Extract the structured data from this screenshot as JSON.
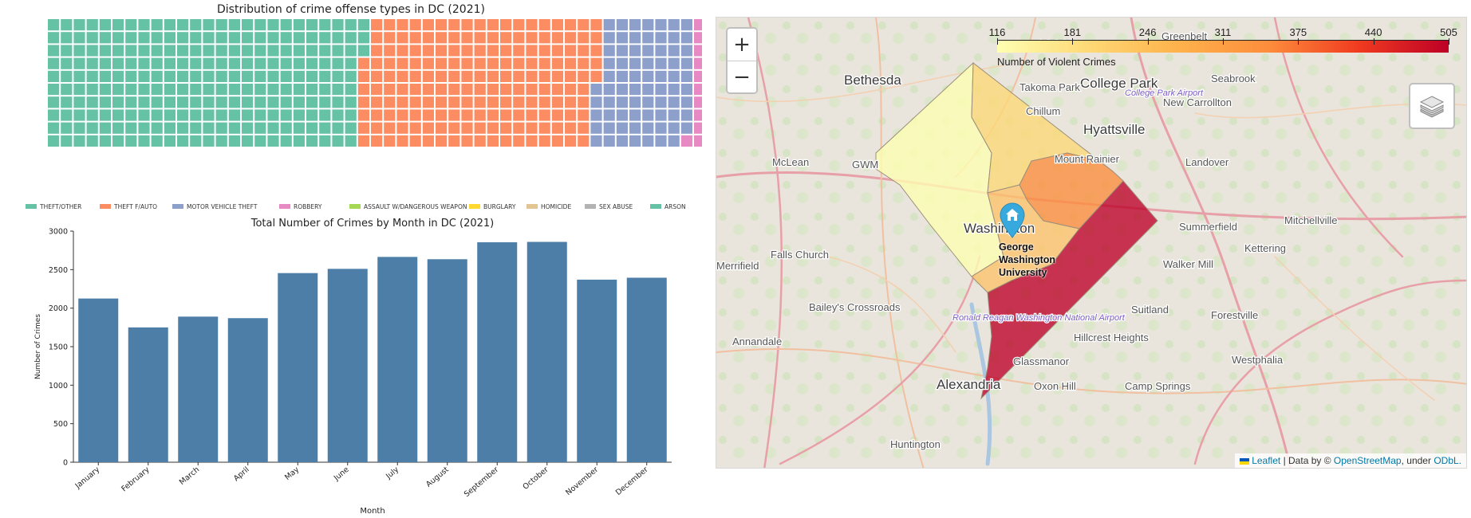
{
  "chart_data": [
    {
      "type": "waffle",
      "title": "Distribution of crime offense types in DC (2021)",
      "rows": 10,
      "columns": 62,
      "categories": [
        {
          "name": "THEFT/OTHER",
          "cells": 243,
          "color": "#66c2a5"
        },
        {
          "name": "THEFT F/AUTO",
          "cells": 182,
          "color": "#fc8d62"
        },
        {
          "name": "MOTOR VEHICLE THEFT",
          "cells": 74,
          "color": "#8da0cb"
        },
        {
          "name": "ROBBERY",
          "cells": 40,
          "color": "#e78ac3"
        },
        {
          "name": "ASSAULT W/DANGEROUS WEAPON",
          "cells": 30,
          "color": "#a6d854"
        },
        {
          "name": "BURGLARY",
          "cells": 20,
          "color": "#ffd92f"
        },
        {
          "name": "HOMICIDE",
          "cells": 4,
          "color": "#e5c494"
        },
        {
          "name": "SEX ABUSE",
          "cells": 7,
          "color": "#b3b3b3"
        },
        {
          "name": "ARSON",
          "cells": 0,
          "color": "#66c2a5"
        }
      ],
      "legend": "bottom"
    },
    {
      "type": "bar",
      "title": "Total Number of Crimes by Month in DC (2021)",
      "xlabel": "Month",
      "ylabel": "Number of Crimes",
      "categories": [
        "January",
        "February",
        "March",
        "April",
        "May",
        "June",
        "July",
        "August",
        "September",
        "October",
        "November",
        "December"
      ],
      "values": [
        2125,
        1750,
        1890,
        1870,
        2455,
        2510,
        2665,
        2635,
        2855,
        2860,
        2370,
        2395
      ],
      "ylim": [
        0,
        3000
      ],
      "yticks": [
        0,
        500,
        1000,
        1500,
        2000,
        2500,
        3000
      ],
      "bar_color": "#4c7ea8",
      "grid": false
    },
    {
      "type": "choropleth",
      "colorbar": {
        "ticks": [
          "116",
          "181",
          "246",
          "311",
          "375",
          "440",
          "505"
        ],
        "min": 116,
        "max": 505,
        "caption": "Number of Violent Crimes"
      },
      "regions": [
        {
          "id": "ward-nw",
          "value": 130
        },
        {
          "id": "ward-north",
          "value": 240
        },
        {
          "id": "ward-ne",
          "value": 380
        },
        {
          "id": "ward-center",
          "value": 260
        },
        {
          "id": "ward-se",
          "value": 505
        }
      ]
    }
  ],
  "map": {
    "zoom_in": "+",
    "zoom_out": "−",
    "marker_label_lines": [
      "George",
      "Washington",
      "University"
    ],
    "labels": [
      {
        "text": "Bethesda",
        "big": true
      },
      {
        "text": "College Park",
        "big": true
      },
      {
        "text": "Hyattsville",
        "big": true
      },
      {
        "text": "Alexandria",
        "big": true
      },
      {
        "text": "Washington",
        "big": true
      },
      {
        "text": "Takoma Park",
        "big": false
      },
      {
        "text": "Seabrook",
        "big": false
      },
      {
        "text": "New Carrollton",
        "big": false
      },
      {
        "text": "Chillum",
        "big": false
      },
      {
        "text": "Mount Rainier",
        "big": false
      },
      {
        "text": "Landover",
        "big": false
      },
      {
        "text": "McLean",
        "big": false
      },
      {
        "text": "Summerfield",
        "big": false
      },
      {
        "text": "Mitchellville",
        "big": false
      },
      {
        "text": "Kettering",
        "big": false
      },
      {
        "text": "Falls Church",
        "big": false
      },
      {
        "text": "Walker Mill",
        "big": false
      },
      {
        "text": "Bailey's Crossroads",
        "big": false
      },
      {
        "text": "Suitland",
        "big": false
      },
      {
        "text": "Forestville",
        "big": false
      },
      {
        "text": "Annandale",
        "big": false
      },
      {
        "text": "Hillcrest Heights",
        "big": false
      },
      {
        "text": "Glassmanor",
        "big": false
      },
      {
        "text": "Westphalia",
        "big": false
      },
      {
        "text": "Oxon Hill",
        "big": false
      },
      {
        "text": "Camp Springs",
        "big": false
      },
      {
        "text": "Huntington",
        "big": false
      },
      {
        "text": "Greenbelt",
        "big": false
      },
      {
        "text": "Adelphi",
        "big": false
      },
      {
        "text": "Merrifield",
        "big": false
      },
      {
        "text": "Ronald Reagan Washington National Airport",
        "big": false
      },
      {
        "text": "College Park Airport",
        "big": false
      },
      {
        "text": "GWM",
        "big": false
      }
    ],
    "attribution": {
      "leaflet": "Leaflet",
      "sep": " | Data by © ",
      "osm": "OpenStreetMap",
      "mid": ", under ",
      "odbl": "ODbL."
    }
  }
}
